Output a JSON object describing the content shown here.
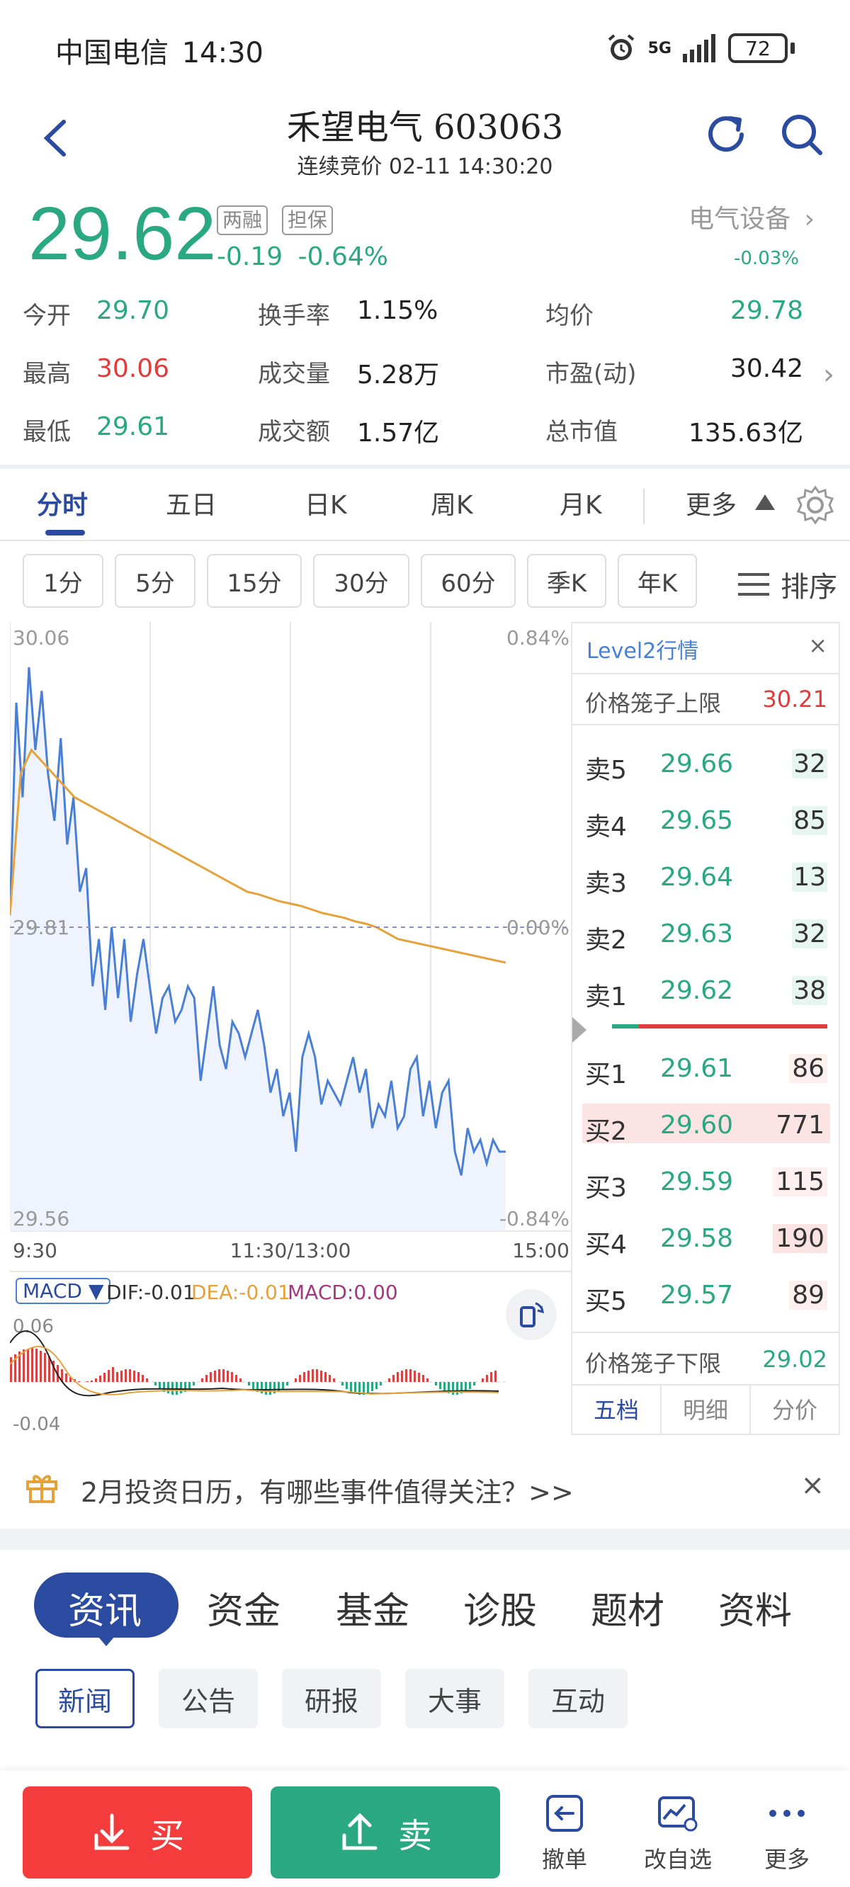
{
  "status_bar": {
    "carrier": "中国电信",
    "time": "14:30",
    "network": "5G",
    "battery": "72"
  },
  "header": {
    "title": "禾望电气 603063",
    "subtitle": "连续竞价 02-11 14:30:20"
  },
  "quote": {
    "price": "29.62",
    "tag_margin": "两融",
    "tag_collateral": "担保",
    "change": "-0.19",
    "change_pct": "-0.64%",
    "sector": "电气设备",
    "sector_change": "-0.03%"
  },
  "stats": {
    "open_label": "今开",
    "open": "29.70",
    "high_label": "最高",
    "high": "30.06",
    "low_label": "最低",
    "low": "29.61",
    "turnover_rate_label": "换手率",
    "turnover_rate": "1.15%",
    "volume_label": "成交量",
    "volume": "5.28万",
    "amount_label": "成交额",
    "amount": "1.57亿",
    "avg_label": "均价",
    "avg": "29.78",
    "pe_label": "市盈(动)",
    "pe": "30.42",
    "mcap_label": "总市值",
    "mcap": "135.63亿"
  },
  "period_tabs": [
    "分时",
    "五日",
    "日K",
    "周K",
    "月K",
    "更多"
  ],
  "interval_chips": [
    "1分",
    "5分",
    "15分",
    "30分",
    "60分",
    "季K",
    "年K"
  ],
  "sort_label": "排序",
  "chart_labels": {
    "y_top": "30.06",
    "y_mid": "29.81",
    "y_bottom": "29.56",
    "pct_top": "0.84%",
    "pct_mid": "0.00%",
    "pct_bottom": "-0.84%",
    "x_start": "9:30",
    "x_mid": "11:30/13:00",
    "x_end": "15:00",
    "macd_selector": "MACD ▼",
    "dif": "DIF:-0.01",
    "dea": "DEA:-0.01",
    "macd": "MACD:0.00",
    "macd_top": "0.06",
    "macd_bottom": "-0.04"
  },
  "chart_data": {
    "type": "line",
    "title": "",
    "xlabel": "",
    "ylabel": "",
    "ylim": [
      29.56,
      30.06
    ],
    "x_ticks": [
      "9:30",
      "11:30/13:00",
      "15:00"
    ],
    "series": [
      {
        "name": "价格",
        "color": "#4a7fd6",
        "values": [
          29.82,
          30.0,
          29.92,
          30.03,
          29.96,
          30.01,
          29.94,
          29.9,
          29.97,
          29.88,
          29.92,
          29.84,
          29.86,
          29.76,
          29.8,
          29.74,
          29.81,
          29.75,
          29.8,
          29.73,
          29.77,
          29.8,
          29.76,
          29.72,
          29.75,
          29.76,
          29.73,
          29.74,
          29.76,
          29.75,
          29.68,
          29.72,
          29.76,
          29.71,
          29.69,
          29.73,
          29.72,
          29.7,
          29.72,
          29.74,
          29.71,
          29.67,
          29.69,
          29.65,
          29.67,
          29.62,
          29.7,
          29.72,
          29.7,
          29.66,
          29.68,
          29.67,
          29.66,
          29.68,
          29.7,
          29.67,
          29.69,
          29.64,
          29.66,
          29.65,
          29.68,
          29.64,
          29.65,
          29.69,
          29.7,
          29.65,
          29.68,
          29.64,
          29.67,
          29.68,
          29.62,
          29.6,
          29.64,
          29.62,
          29.63,
          29.61,
          29.63,
          29.62,
          29.62
        ]
      },
      {
        "name": "均价",
        "color": "#e5a23b",
        "values": [
          29.82,
          29.94,
          29.96,
          29.95,
          29.94,
          29.93,
          29.92,
          29.915,
          29.91,
          29.905,
          29.9,
          29.895,
          29.89,
          29.885,
          29.88,
          29.875,
          29.87,
          29.865,
          29.86,
          29.855,
          29.85,
          29.845,
          29.84,
          29.838,
          29.835,
          29.832,
          29.83,
          29.828,
          29.825,
          29.822,
          29.82,
          29.818,
          29.815,
          29.813,
          29.81,
          29.805,
          29.8,
          29.798,
          29.796,
          29.794,
          29.792,
          29.79,
          29.788,
          29.786,
          29.784,
          29.782,
          29.78
        ]
      }
    ]
  },
  "orderbook": {
    "title": "Level2行情",
    "close": "×",
    "upper_limit_label": "价格笼子上限",
    "upper_limit": "30.21",
    "asks": [
      {
        "label": "卖5",
        "price": "29.66",
        "qty": "32"
      },
      {
        "label": "卖4",
        "price": "29.65",
        "qty": "85"
      },
      {
        "label": "卖3",
        "price": "29.64",
        "qty": "13"
      },
      {
        "label": "卖2",
        "price": "29.63",
        "qty": "32"
      },
      {
        "label": "卖1",
        "price": "29.62",
        "qty": "38"
      }
    ],
    "bids": [
      {
        "label": "买1",
        "price": "29.61",
        "qty": "86"
      },
      {
        "label": "买2",
        "price": "29.60",
        "qty": "771"
      },
      {
        "label": "买3",
        "price": "29.59",
        "qty": "115"
      },
      {
        "label": "买4",
        "price": "29.58",
        "qty": "190"
      },
      {
        "label": "买5",
        "price": "29.57",
        "qty": "89"
      }
    ],
    "lower_limit_label": "价格笼子下限",
    "lower_limit": "29.02",
    "tabs": [
      "五档",
      "明细",
      "分价"
    ]
  },
  "promo": {
    "text": "2月投资日历，有哪些事件值得关注？>>",
    "close": "×"
  },
  "news_tabs": [
    "资讯",
    "资金",
    "基金",
    "诊股",
    "题材",
    "资料"
  ],
  "news_subtabs": [
    "新闻",
    "公告",
    "研报",
    "大事",
    "互动"
  ],
  "bottom_bar": {
    "buy": "买",
    "sell": "卖",
    "cancel": "撤单",
    "edit_watchlist": "改自选",
    "more": "更多"
  },
  "colors": {
    "up": "#e23b3b",
    "down": "#2aa882",
    "accent": "#2b4ba0",
    "price_line": "#4a7fd6",
    "avg_line": "#e5a23b"
  }
}
